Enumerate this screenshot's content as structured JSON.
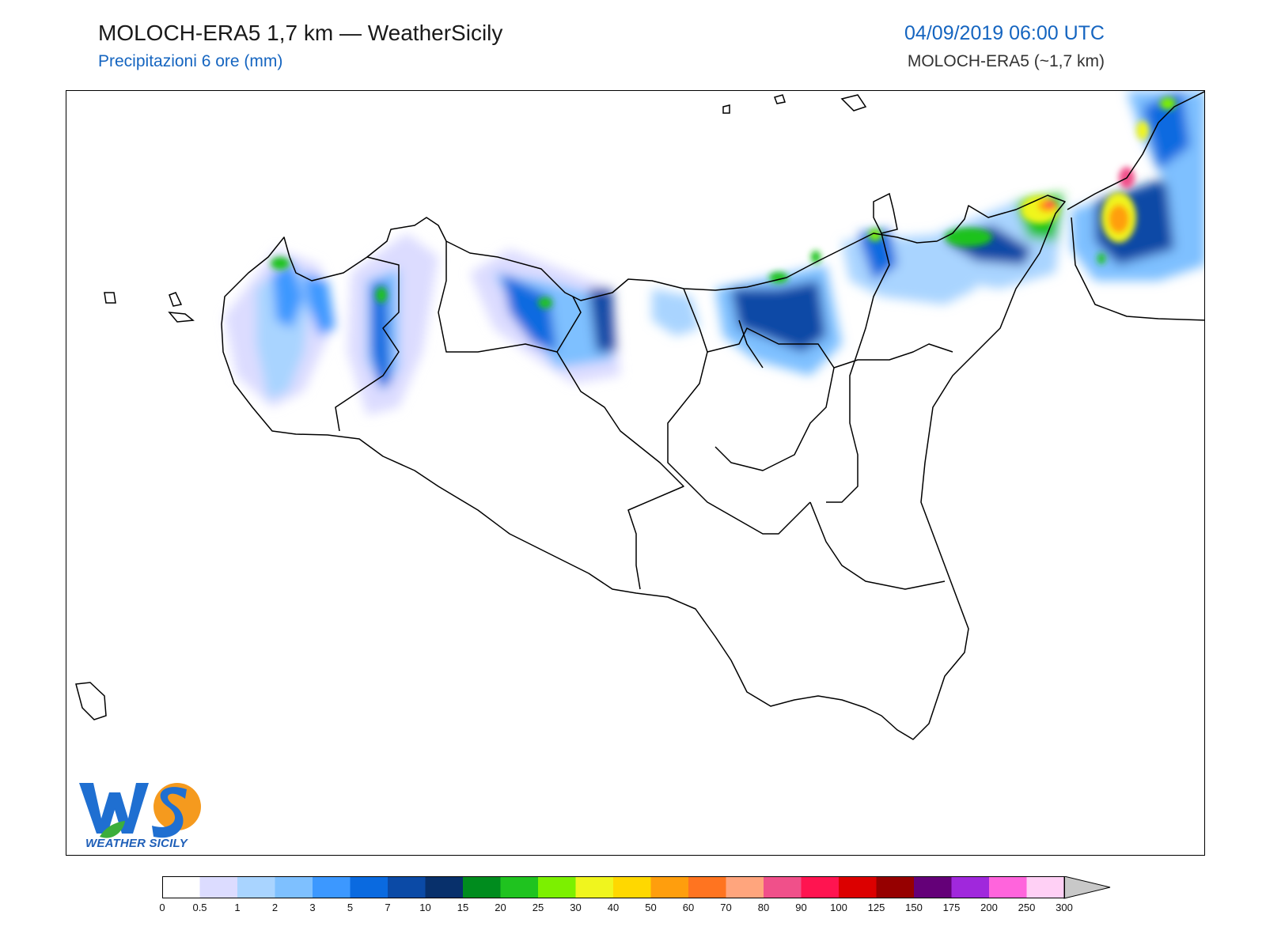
{
  "header": {
    "title": "MOLOCH-ERA5 1,7 km — WeatherSicily",
    "subtitle": "Precipitazioni 6 ore (mm)",
    "datetime": "04/09/2019 06:00 UTC",
    "model": "MOLOCH-ERA5 (~1,7 km)"
  },
  "logo": {
    "text": "WEATHER SICILY",
    "letters": "WS"
  },
  "legend": {
    "labels": [
      "0",
      "0.5",
      "1",
      "2",
      "3",
      "5",
      "7",
      "10",
      "15",
      "20",
      "25",
      "30",
      "40",
      "50",
      "60",
      "70",
      "80",
      "90",
      "100",
      "125",
      "150",
      "175",
      "200",
      "250",
      "300"
    ],
    "colors": [
      "#ffffff",
      "#dcdcff",
      "#a9d4ff",
      "#7ec0ff",
      "#3c98ff",
      "#0a6ae0",
      "#0b4aa6",
      "#08306b",
      "#008c1e",
      "#1fc31f",
      "#7cf000",
      "#f0f51e",
      "#ffd800",
      "#ff9e0d",
      "#ff7420",
      "#ffa57d",
      "#f0508a",
      "#ff1450",
      "#dc0000",
      "#960000",
      "#640078",
      "#a028dc",
      "#ff64dc",
      "#ffd0f5"
    ]
  }
}
